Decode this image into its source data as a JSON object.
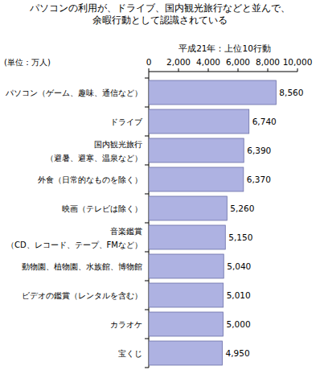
{
  "chart_data": {
    "type": "bar",
    "orientation": "horizontal",
    "title": "パソコンの利用が、ドライブ、国内観光旅行などと並んで、\n余暇行動として認識されている",
    "subtitle": "平成21年：上位10行動",
    "x_label": "(単位：万人)",
    "categories": [
      "パソコン（ゲーム、趣味、通信など）",
      "ドライブ",
      "国内観光旅行\n（避暑、避寒、温泉など）",
      "外食（日常的なものを除く）",
      "映画（テレビは除く）",
      "音楽鑑賞\n（CD、レコード、テープ、FMなど）",
      "動物園、植物園、水族館、博物館",
      "ビデオの鑑賞（レンタルを含む）",
      "カラオケ",
      "宝くじ"
    ],
    "values": [
      8560,
      6740,
      6390,
      6370,
      5260,
      5150,
      5040,
      5010,
      5000,
      4950
    ],
    "value_labels": [
      "8,560",
      "6,740",
      "6,390",
      "6,370",
      "5,260",
      "5,150",
      "5,040",
      "5,010",
      "5,000",
      "4,950"
    ],
    "data_labels": true,
    "color": "#aeb2e2",
    "xlim": [
      0,
      10000
    ],
    "xticks": [
      0,
      {
        "value": 2000,
        "label": "2,000"
      },
      {
        "value": 4000,
        "label": "4,000"
      },
      {
        "value": 6000,
        "label": "6,000"
      },
      {
        "value": 8000,
        "label": "8,000"
      },
      {
        "value": 10000,
        "label": "10,000"
      }
    ],
    "grid": false
  }
}
